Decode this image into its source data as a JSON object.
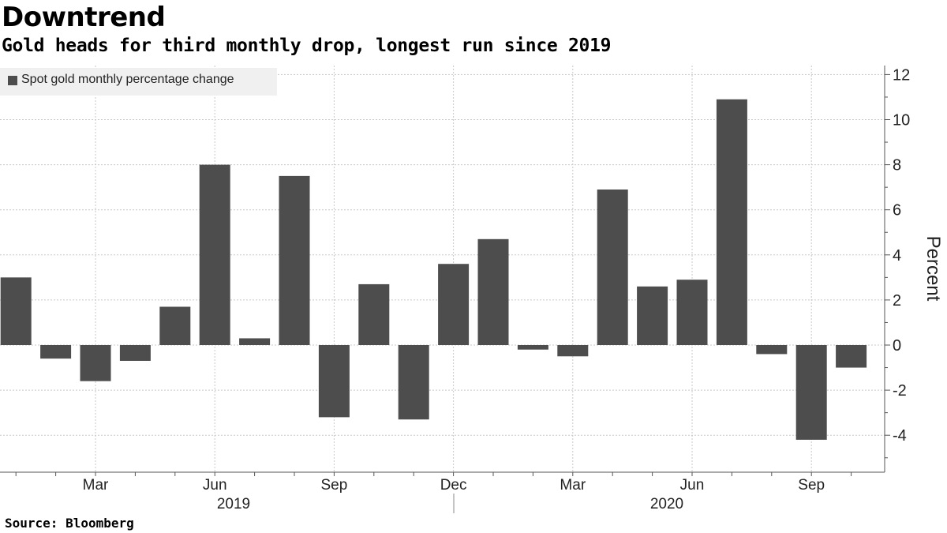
{
  "header": {
    "title": "Downtrend",
    "subtitle": "Gold heads for third monthly drop, longest run since 2019"
  },
  "source": "Source: Bloomberg",
  "legend": {
    "label": "Spot gold monthly percentage change"
  },
  "colors": {
    "bar": "#4d4d4d",
    "grid": "#c8c8c8",
    "axis": "#555555"
  },
  "chart_data": {
    "type": "bar",
    "title": "Downtrend",
    "subtitle": "Gold heads for third monthly drop, longest run since 2019",
    "ylabel": "Percent",
    "ylim": [
      -5.7,
      12.4
    ],
    "yticks": [
      -4,
      -2,
      0,
      2,
      4,
      6,
      8,
      10,
      12
    ],
    "grid": true,
    "legend_position": "top-left",
    "y_axis_side": "right",
    "categories": [
      "2019-01",
      "2019-02",
      "2019-03",
      "2019-04",
      "2019-05",
      "2019-06",
      "2019-07",
      "2019-08",
      "2019-09",
      "2019-10",
      "2019-11",
      "2019-12",
      "2020-01",
      "2020-02",
      "2020-03",
      "2020-04",
      "2020-05",
      "2020-06",
      "2020-07",
      "2020-08",
      "2020-09",
      "2020-10"
    ],
    "x_tick_labels": [
      "Mar",
      "Jun",
      "Sep",
      "Dec",
      "Mar",
      "Jun",
      "Sep"
    ],
    "year_labels": [
      "2019",
      "2020"
    ],
    "series": [
      {
        "name": "Spot gold monthly percentage change",
        "values": [
          3.0,
          -0.6,
          -1.6,
          -0.7,
          1.7,
          8.0,
          0.3,
          7.5,
          -3.2,
          2.7,
          -3.3,
          3.6,
          4.7,
          -0.2,
          -0.5,
          6.9,
          2.6,
          2.9,
          10.9,
          -0.4,
          -4.2,
          -1.0
        ]
      }
    ]
  }
}
